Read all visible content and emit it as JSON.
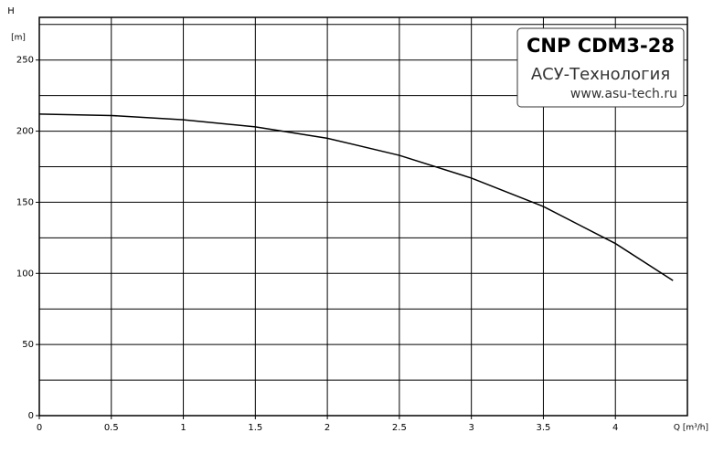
{
  "chart_data": {
    "type": "line",
    "title": "CNP CDM3-28",
    "subtitle": "АСУ-Технология",
    "annotation": "www.asu-tech.ru",
    "y_label": "H",
    "y_unit": "[m]",
    "x_label": "Q [m³/h]",
    "x": [
      0,
      0.5,
      1,
      1.5,
      2,
      2.5,
      3,
      3.5,
      4,
      4.4
    ],
    "series": [
      {
        "name": "CNP CDM3-28",
        "color": "#000000",
        "values": [
          212,
          211,
          208,
          203,
          195,
          183,
          167,
          147,
          121,
          95
        ]
      }
    ],
    "xlim": [
      0,
      4.5
    ],
    "xticks": [
      0,
      0.5,
      1,
      1.5,
      2,
      2.5,
      3,
      3.5,
      4
    ],
    "ylim": [
      0,
      280
    ],
    "yticks": [
      0,
      50,
      100,
      150,
      200,
      250
    ],
    "yminor": [
      25,
      75,
      125,
      175,
      225,
      275
    ],
    "grid": true
  }
}
